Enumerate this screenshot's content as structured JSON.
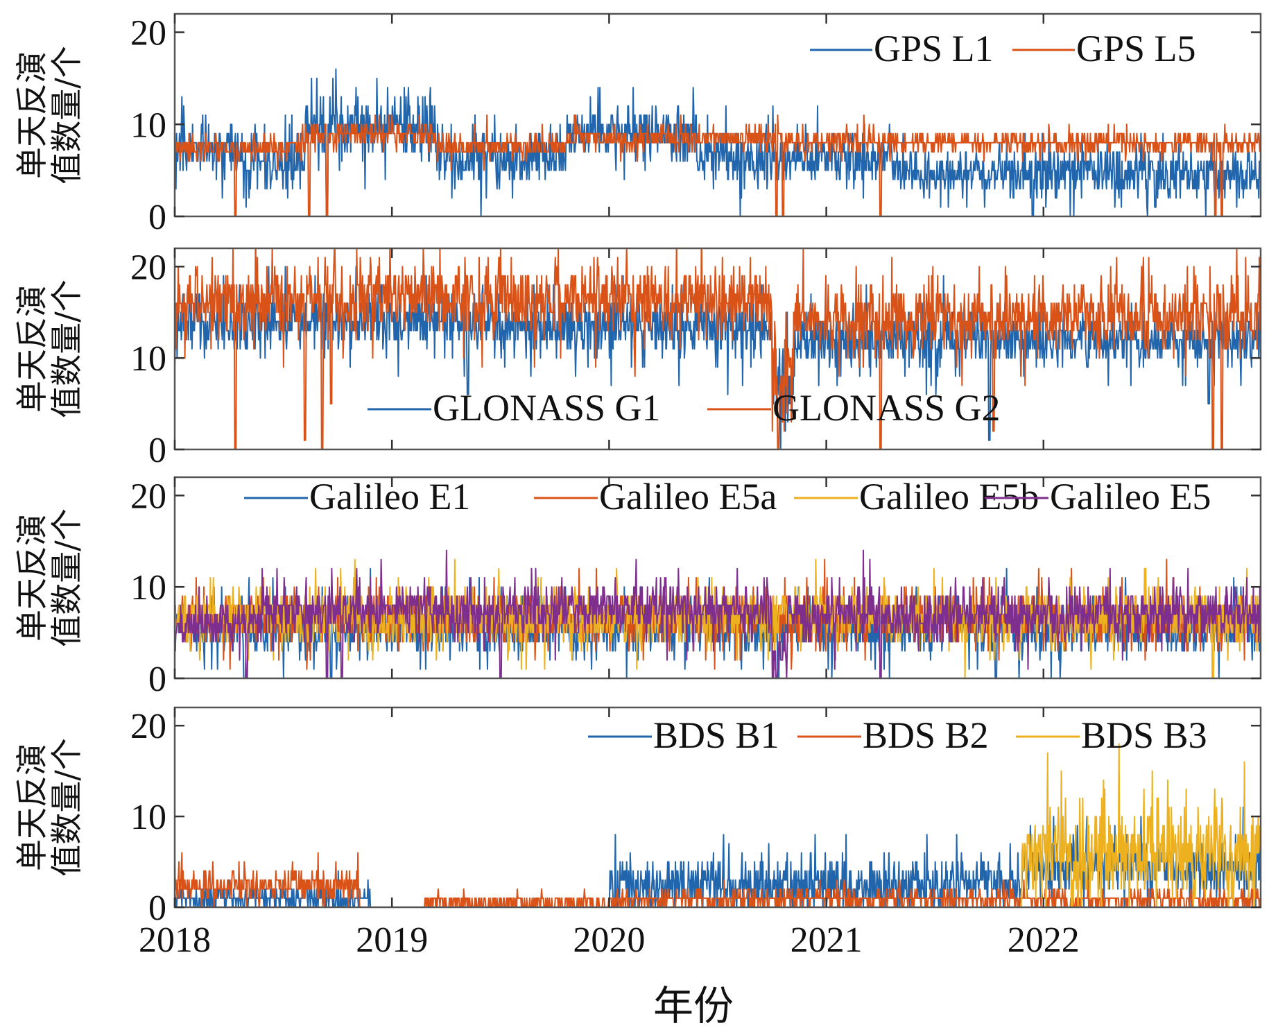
{
  "chart_data": {
    "type": "line",
    "title": "",
    "xlabel": "年份",
    "x_range": [
      "2018-01-01",
      "2022-12-31"
    ],
    "x_ticks": [
      "2018",
      "2019",
      "2020",
      "2021",
      "2022"
    ],
    "sampling": "daily",
    "panels": [
      {
        "id": "gps",
        "ylabel_lines": [
          "单天反演",
          "值数量/个"
        ],
        "ylim": [
          0,
          22
        ],
        "y_ticks": [
          0,
          10,
          20
        ],
        "legend_position": "top-right",
        "series": [
          {
            "name": "GPS L1",
            "color": "#2166ac",
            "segments": [
              {
                "start": 2018.0,
                "end": 2018.3,
                "mean": 7.5,
                "spread": 2.0
              },
              {
                "start": 2018.3,
                "end": 2018.6,
                "mean": 5.5,
                "spread": 2.0
              },
              {
                "start": 2018.6,
                "end": 2019.2,
                "mean": 9.5,
                "spread": 2.5
              },
              {
                "start": 2019.2,
                "end": 2019.8,
                "mean": 6.5,
                "spread": 2.0
              },
              {
                "start": 2019.8,
                "end": 2020.4,
                "mean": 9.0,
                "spread": 2.0
              },
              {
                "start": 2020.4,
                "end": 2021.3,
                "mean": 6.5,
                "spread": 2.0
              },
              {
                "start": 2021.3,
                "end": 2022.3,
                "mean": 5.0,
                "spread": 1.8
              },
              {
                "start": 2022.3,
                "end": 2023.0,
                "mean": 4.5,
                "spread": 1.8
              }
            ],
            "peaks": [
              {
                "t": 2018.93,
                "v": 15
              },
              {
                "t": 2019.95,
                "v": 14
              },
              {
                "t": 2020.4,
                "v": 11
              }
            ],
            "dips": [
              {
                "t": 2018.7,
                "v": 0
              },
              {
                "t": 2021.95,
                "v": 0
              }
            ]
          },
          {
            "name": "GPS L5",
            "color": "#d95319",
            "segments": [
              {
                "start": 2018.0,
                "end": 2018.6,
                "mean": 7.5,
                "spread": 0.8
              },
              {
                "start": 2018.6,
                "end": 2019.2,
                "mean": 9.0,
                "spread": 1.0
              },
              {
                "start": 2019.2,
                "end": 2019.8,
                "mean": 7.5,
                "spread": 0.8
              },
              {
                "start": 2019.8,
                "end": 2020.8,
                "mean": 8.5,
                "spread": 0.8
              },
              {
                "start": 2020.8,
                "end": 2023.0,
                "mean": 8.0,
                "spread": 0.8
              }
            ],
            "peaks": [],
            "dips": [
              {
                "t": 2018.28,
                "v": 0
              },
              {
                "t": 2018.62,
                "v": 0
              },
              {
                "t": 2018.7,
                "v": 0
              },
              {
                "t": 2020.77,
                "v": 0
              },
              {
                "t": 2020.8,
                "v": 0
              },
              {
                "t": 2021.25,
                "v": 0
              },
              {
                "t": 2022.79,
                "v": 0
              },
              {
                "t": 2022.82,
                "v": 0
              }
            ]
          }
        ]
      },
      {
        "id": "glonass",
        "ylabel_lines": [
          "单天反演",
          "值数量/个"
        ],
        "ylim": [
          0,
          22
        ],
        "y_ticks": [
          0,
          10,
          20
        ],
        "legend_position": "bottom-center",
        "series": [
          {
            "name": "GLONASS G1",
            "color": "#2166ac",
            "segments": [
              {
                "start": 2018.0,
                "end": 2019.5,
                "mean": 14.0,
                "spread": 2.2
              },
              {
                "start": 2019.5,
                "end": 2020.75,
                "mean": 13.5,
                "spread": 2.2
              },
              {
                "start": 2020.75,
                "end": 2020.85,
                "mean": 7.0,
                "spread": 3.0
              },
              {
                "start": 2020.85,
                "end": 2023.0,
                "mean": 12.0,
                "spread": 2.0
              }
            ],
            "peaks": [],
            "dips": [
              {
                "t": 2019.35,
                "v": 6
              },
              {
                "t": 2021.75,
                "v": 1
              },
              {
                "t": 2022.76,
                "v": 5
              }
            ]
          },
          {
            "name": "GLONASS G2",
            "color": "#d95319",
            "segments": [
              {
                "start": 2018.0,
                "end": 2020.75,
                "mean": 16.5,
                "spread": 2.5
              },
              {
                "start": 2020.75,
                "end": 2020.85,
                "mean": 8.0,
                "spread": 3.0
              },
              {
                "start": 2020.85,
                "end": 2023.0,
                "mean": 14.5,
                "spread": 2.5
              }
            ],
            "peaks": [
              {
                "t": 2018.45,
                "v": 22
              },
              {
                "t": 2019.5,
                "v": 22
              },
              {
                "t": 2020.65,
                "v": 21
              }
            ],
            "dips": [
              {
                "t": 2018.28,
                "v": 0
              },
              {
                "t": 2018.6,
                "v": 1
              },
              {
                "t": 2018.68,
                "v": 0
              },
              {
                "t": 2018.72,
                "v": 5
              },
              {
                "t": 2020.78,
                "v": 0
              },
              {
                "t": 2021.25,
                "v": 0
              },
              {
                "t": 2021.77,
                "v": 2
              },
              {
                "t": 2022.78,
                "v": 0
              },
              {
                "t": 2022.82,
                "v": 0
              }
            ]
          }
        ]
      },
      {
        "id": "galileo",
        "ylabel_lines": [
          "单天反演",
          "值数量/个"
        ],
        "ylim": [
          0,
          22
        ],
        "y_ticks": [
          0,
          10,
          20
        ],
        "legend_position": "top",
        "series": [
          {
            "name": "Galileo E1",
            "color": "#2166ac",
            "segments": [
              {
                "start": 2018.0,
                "end": 2023.0,
                "mean": 5.5,
                "spread": 1.8
              }
            ],
            "peaks": [],
            "dips": [
              {
                "t": 2018.32,
                "v": 0
              },
              {
                "t": 2018.72,
                "v": 0
              },
              {
                "t": 2020.78,
                "v": 0
              },
              {
                "t": 2021.78,
                "v": 0
              }
            ]
          },
          {
            "name": "Galileo E5a",
            "color": "#d95319",
            "segments": [
              {
                "start": 2018.0,
                "end": 2023.0,
                "mean": 6.5,
                "spread": 1.8
              }
            ],
            "peaks": [
              {
                "t": 2019.25,
                "v": 13
              }
            ],
            "dips": []
          },
          {
            "name": "Galileo E5b",
            "color": "#edb120",
            "segments": [
              {
                "start": 2018.0,
                "end": 2023.0,
                "mean": 6.8,
                "spread": 2.0
              }
            ],
            "peaks": [],
            "dips": [
              {
                "t": 2022.78,
                "v": 0
              }
            ]
          },
          {
            "name": "Galileo E5",
            "color": "#7e2f8e",
            "segments": [
              {
                "start": 2018.0,
                "end": 2018.4,
                "mean": 6.0,
                "spread": 1.5
              },
              {
                "start": 2018.4,
                "end": 2020.75,
                "mean": 7.5,
                "spread": 1.8
              },
              {
                "start": 2020.75,
                "end": 2020.82,
                "mean": 2.0,
                "spread": 1.5
              },
              {
                "start": 2020.82,
                "end": 2023.0,
                "mean": 7.0,
                "spread": 1.8
              }
            ],
            "peaks": [
              {
                "t": 2019.25,
                "v": 14
              },
              {
                "t": 2021.17,
                "v": 14
              }
            ],
            "dips": [
              {
                "t": 2018.33,
                "v": 0
              },
              {
                "t": 2018.7,
                "v": 0
              },
              {
                "t": 2018.77,
                "v": 0
              },
              {
                "t": 2019.5,
                "v": 0
              },
              {
                "t": 2020.77,
                "v": 0
              },
              {
                "t": 2021.25,
                "v": 0
              }
            ]
          }
        ]
      },
      {
        "id": "bds",
        "ylabel_lines": [
          "单天反演",
          "值数量/个"
        ],
        "ylim": [
          0,
          22
        ],
        "y_ticks": [
          0,
          10,
          20
        ],
        "legend_position": "top-right",
        "series": [
          {
            "name": "BDS B1",
            "color": "#2166ac",
            "segments": [
              {
                "start": 2018.0,
                "end": 2018.9,
                "mean": 1.0,
                "spread": 1.0
              },
              {
                "start": 2018.9,
                "end": 2020.0,
                "mean": 0,
                "spread": 0
              },
              {
                "start": 2020.0,
                "end": 2021.9,
                "mean": 2.5,
                "spread": 2.0
              },
              {
                "start": 2021.9,
                "end": 2023.0,
                "mean": 4.5,
                "spread": 2.0
              }
            ],
            "peaks": [
              {
                "t": 2020.95,
                "v": 8
              },
              {
                "t": 2021.6,
                "v": 8
              }
            ],
            "dips": []
          },
          {
            "name": "BDS B2",
            "color": "#d95319",
            "segments": [
              {
                "start": 2018.0,
                "end": 2018.85,
                "mean": 2.5,
                "spread": 1.2
              },
              {
                "start": 2018.85,
                "end": 2019.15,
                "mean": 0,
                "spread": 0
              },
              {
                "start": 2019.15,
                "end": 2020.0,
                "mean": 0.5,
                "spread": 0.5
              },
              {
                "start": 2020.0,
                "end": 2023.0,
                "mean": 0.8,
                "spread": 0.7
              }
            ],
            "peaks": [
              {
                "t": 2018.02,
                "v": 5
              }
            ],
            "dips": []
          },
          {
            "name": "BDS B3",
            "color": "#edb120",
            "segments": [
              {
                "start": 2018.0,
                "end": 2021.9,
                "mean": 0,
                "spread": 0
              },
              {
                "start": 2021.9,
                "end": 2023.0,
                "mean": 6.0,
                "spread": 3.5
              }
            ],
            "peaks": [
              {
                "t": 2022.82,
                "v": 12
              }
            ],
            "dips": []
          }
        ]
      }
    ]
  }
}
